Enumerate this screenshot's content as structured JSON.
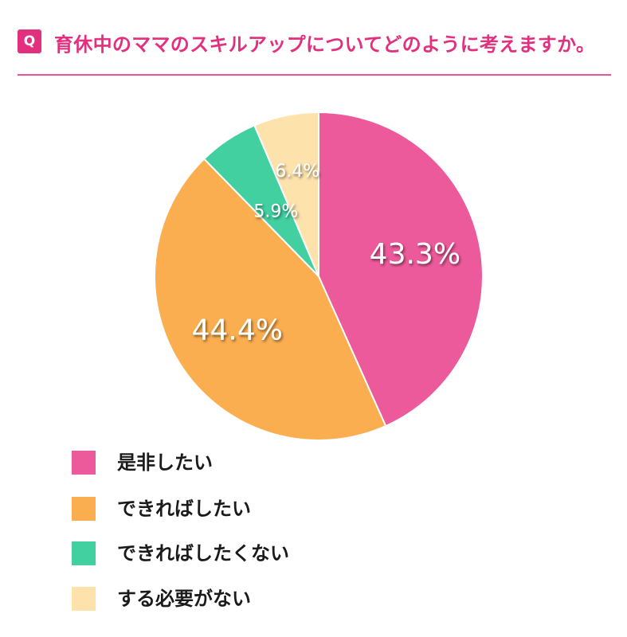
{
  "header": {
    "badge": "Q",
    "title": "育休中のママのスキルアップについてどのように考えますか。"
  },
  "chart_data": {
    "type": "pie",
    "title": "育休中のママのスキルアップについてどのように考えますか。",
    "categories": [
      "是非したい",
      "できればしたい",
      "できればしたくない",
      "する必要がない"
    ],
    "values": [
      43.3,
      44.4,
      5.9,
      6.4
    ],
    "labels": [
      "43.3%",
      "44.4%",
      "5.9%",
      "6.4%"
    ],
    "colors": [
      "#ed5a9b",
      "#fbae4f",
      "#43d0a0",
      "#fde2ac"
    ],
    "start": "12 o'clock",
    "direction": "clockwise",
    "legend_position": "bottom-left"
  },
  "legend": {
    "items": [
      {
        "label": "是非したい",
        "color": "#ed5a9b"
      },
      {
        "label": "できればしたい",
        "color": "#fbae4f"
      },
      {
        "label": "できればしたくない",
        "color": "#43d0a0"
      },
      {
        "label": "する必要がない",
        "color": "#fde2ac"
      }
    ]
  }
}
